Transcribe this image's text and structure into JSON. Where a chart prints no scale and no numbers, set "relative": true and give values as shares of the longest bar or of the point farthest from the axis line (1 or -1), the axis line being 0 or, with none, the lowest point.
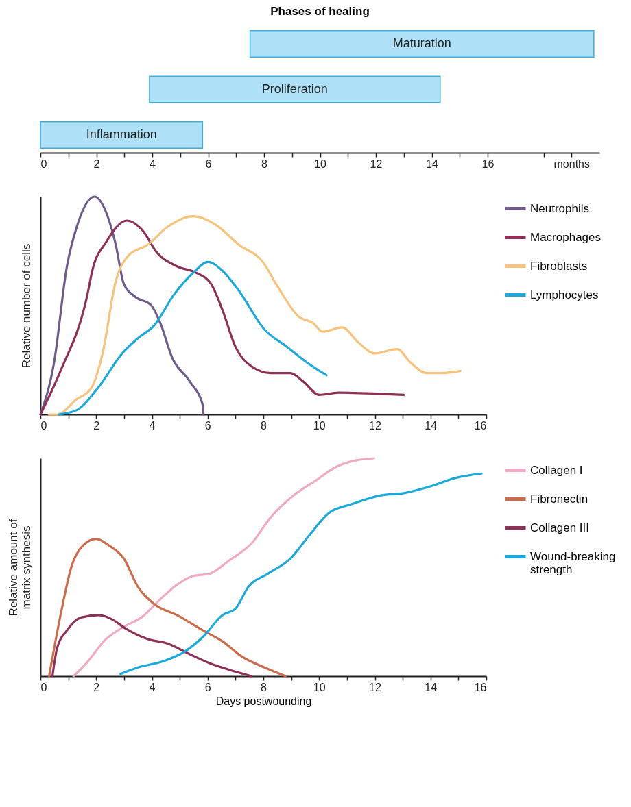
{
  "chart_data": [
    {
      "type": "bar",
      "title": "Phases of healing",
      "orientation": "horizontal",
      "categories": [
        "Maturation",
        "Proliferation",
        "Inflammation"
      ],
      "base": [
        7.5,
        3.9,
        0
      ],
      "values": [
        12.3,
        10.4,
        5.8
      ],
      "color": "#aee0f7",
      "xlim": [
        0,
        20
      ],
      "xticks": [
        0,
        {
          "value": 1,
          "label": null
        },
        2,
        {
          "value": 3,
          "label": null
        },
        4,
        {
          "value": 5,
          "label": null
        },
        6,
        {
          "value": 7,
          "label": null
        },
        8,
        {
          "value": 9,
          "label": null
        },
        10,
        {
          "value": 11,
          "label": null
        },
        12,
        {
          "value": 13,
          "label": null
        },
        14,
        {
          "value": 15,
          "label": null
        },
        16,
        {
          "value": 18,
          "label": null
        },
        {
          "value": 19,
          "label": "months"
        }
      ],
      "tick_labels": "x"
    },
    {
      "type": "line",
      "ylabel": "Relative number of cells",
      "relative": true,
      "legend": "right",
      "xlim": [
        0,
        16
      ],
      "xticks": [
        0,
        {
          "value": 1,
          "label": null
        },
        2,
        {
          "value": 3,
          "label": null
        },
        4,
        {
          "value": 5,
          "label": null
        },
        6,
        {
          "value": 7,
          "label": null
        },
        8,
        {
          "value": 9,
          "label": null
        },
        10,
        {
          "value": 11,
          "label": null
        },
        12,
        {
          "value": 13,
          "label": null
        },
        14,
        {
          "value": 15,
          "label": null
        },
        16
      ],
      "series": [
        {
          "name": "Neutrophils",
          "color": "#6f5a8c",
          "x": [
            0,
            0.49,
            0.95,
            1.3,
            1.94,
            2.35,
            2.7,
            2.99,
            3.4,
            3.98,
            4.3,
            4.73,
            5.37,
            5.83,
            5.85
          ],
          "values": [
            0,
            0.24,
            0.68,
            0.86,
            1,
            0.93,
            0.78,
            0.6,
            0.54,
            0.5,
            0.42,
            0.26,
            0.15,
            0.04,
            0
          ]
        },
        {
          "name": "Macrophages",
          "color": "#8e2f57",
          "x": [
            0,
            0.72,
            1.65,
            1.88,
            2.35,
            3.1,
            3.63,
            4.2,
            4.9,
            5.6,
            6.12,
            6.53,
            7,
            7.58,
            8.27,
            8.97,
            9.44,
            10,
            10.7,
            13.04
          ],
          "values": [
            0,
            0.2,
            0.53,
            0.67,
            0.79,
            0.89,
            0.85,
            0.74,
            0.68,
            0.65,
            0.6,
            0.48,
            0.31,
            0.22,
            0.19,
            0.19,
            0.15,
            0.09,
            0.1,
            0.09
          ]
        },
        {
          "name": "Fibroblasts",
          "color": "#f7c37a",
          "x": [
            0.31,
            0.6,
            1.3,
            1.82,
            2.23,
            2.7,
            3.16,
            3.86,
            4.55,
            5.48,
            6.3,
            7.11,
            7.98,
            8.5,
            9.26,
            9.78,
            10.13,
            10.83,
            11.41,
            12,
            12.8,
            13.27,
            13.85,
            14.4,
            15.07
          ],
          "values": [
            0,
            0,
            0.07,
            0.12,
            0.28,
            0.61,
            0.73,
            0.78,
            0.86,
            0.91,
            0.87,
            0.78,
            0.7,
            0.59,
            0.45,
            0.42,
            0.38,
            0.4,
            0.33,
            0.28,
            0.3,
            0.24,
            0.19,
            0.19,
            0.2
          ]
        },
        {
          "name": "Lymphocytes",
          "color": "#1aa9dc",
          "x": [
            0.66,
            1.3,
            2.11,
            2.93,
            3.5,
            4.09,
            4.79,
            5.48,
            6.01,
            6.53,
            7.11,
            8.04,
            8.85,
            9.55,
            10.27
          ],
          "values": [
            0,
            0.02,
            0.13,
            0.28,
            0.35,
            0.41,
            0.55,
            0.65,
            0.7,
            0.66,
            0.57,
            0.39,
            0.31,
            0.24,
            0.18
          ]
        }
      ]
    },
    {
      "type": "line",
      "xlabel": "Days postwounding",
      "ylabel": "Relative amount of\nmatrix synthesis",
      "relative": true,
      "legend": "right",
      "xlim": [
        0,
        16
      ],
      "xticks": [
        0,
        {
          "value": 1,
          "label": null
        },
        2,
        {
          "value": 3,
          "label": null
        },
        4,
        {
          "value": 5,
          "label": null
        },
        6,
        {
          "value": 7,
          "label": null
        },
        8,
        {
          "value": 9,
          "label": null
        },
        10,
        {
          "value": 11,
          "label": null
        },
        12,
        {
          "value": 13,
          "label": null
        },
        14,
        {
          "value": 15,
          "label": null
        },
        16
      ],
      "series": [
        {
          "name": "Collagen I",
          "color": "#f0a8c4",
          "x": [
            1.19,
            1.65,
            2.35,
            3.04,
            3.63,
            4.2,
            4.9,
            5.48,
            6.07,
            6.76,
            7.58,
            8.27,
            9.09,
            9.9,
            10.6,
            11.3,
            11.97
          ],
          "values": [
            0,
            0.06,
            0.17,
            0.23,
            0.27,
            0.34,
            0.42,
            0.46,
            0.47,
            0.53,
            0.61,
            0.73,
            0.83,
            0.9,
            0.96,
            0.99,
            1
          ]
        },
        {
          "name": "Fibronectin",
          "color": "#cd6a4a",
          "x": [
            0.31,
            0.72,
            1.13,
            1.53,
            2,
            2.46,
            2.99,
            3.5,
            4.09,
            4.9,
            5.83,
            6.53,
            7.23,
            8.04,
            8.8
          ],
          "values": [
            0,
            0.28,
            0.51,
            0.6,
            0.63,
            0.6,
            0.54,
            0.41,
            0.33,
            0.28,
            0.21,
            0.16,
            0.09,
            0.04,
            0
          ]
        },
        {
          "name": "Collagen III",
          "color": "#8e2f57",
          "x": [
            0.43,
            0.6,
            0.95,
            1.48,
            2.11,
            2.58,
            3.04,
            3.86,
            4.55,
            5.37,
            6.07,
            6.76,
            7.58
          ],
          "values": [
            0,
            0.13,
            0.21,
            0.27,
            0.28,
            0.26,
            0.22,
            0.17,
            0.15,
            0.1,
            0.06,
            0.03,
            0
          ]
        },
        {
          "name": "Wound-breaking strength",
          "color": "#1aa9dc",
          "x": [
            2.87,
            3.5,
            4.44,
            5.14,
            5.83,
            6.53,
            7,
            7.46,
            8.16,
            8.97,
            9.67,
            10.36,
            11.18,
            12.22,
            13.04,
            13.97,
            14.9,
            15.83
          ],
          "values": [
            0.01,
            0.04,
            0.07,
            0.11,
            0.18,
            0.28,
            0.31,
            0.41,
            0.47,
            0.54,
            0.65,
            0.75,
            0.79,
            0.83,
            0.84,
            0.87,
            0.91,
            0.93
          ]
        }
      ]
    }
  ]
}
